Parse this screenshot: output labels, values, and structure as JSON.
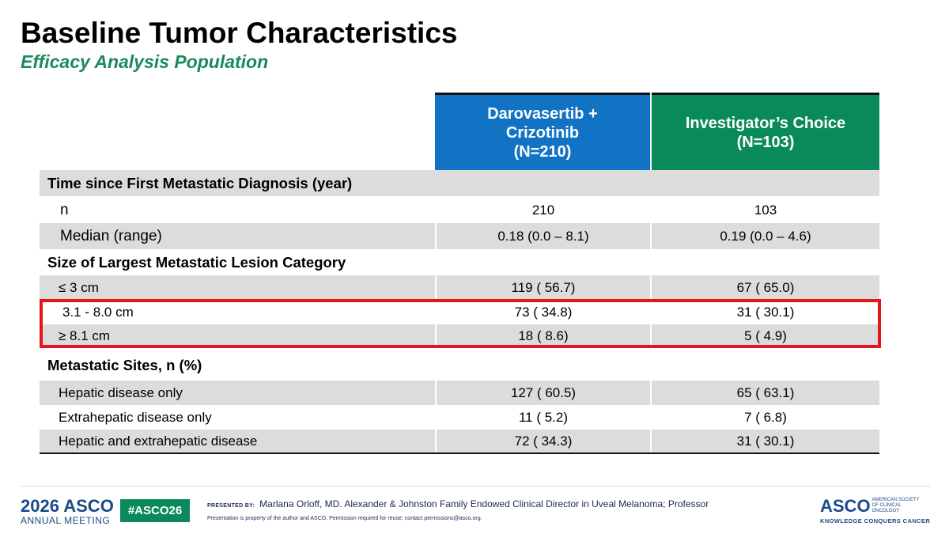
{
  "title": "Baseline Tumor Characteristics",
  "subtitle": "Efficacy Analysis Population",
  "columns": [
    {
      "label": "Darovasertib +\nCrizotinib\n(N=210)",
      "color": "#1273c4"
    },
    {
      "label": "Investigator’s Choice\n(N=103)",
      "color": "#0a8a5b"
    }
  ],
  "sections": {
    "s1": "Time since First Metastatic Diagnosis (year)",
    "s2": "Size of Largest Metastatic Lesion Category",
    "s3": "Metastatic Sites, n (%)"
  },
  "rows": {
    "n": {
      "label": "n",
      "a": "210",
      "b": "103"
    },
    "median": {
      "label": "Median (range)",
      "a": "0.18  (0.0 – 8.1)",
      "b": "0.19 (0.0 – 4.6)"
    },
    "le3": {
      "label": "≤ 3 cm",
      "a": "119 ( 56.7)",
      "b": "67 ( 65.0)"
    },
    "mid": {
      "label": "3.1 - 8.0 cm",
      "a": "73 ( 34.8)",
      "b": "31 ( 30.1)"
    },
    "ge8": {
      "label": "≥ 8.1 cm",
      "a": "18 (  8.6)",
      "b": "5 (  4.9)"
    },
    "hep": {
      "label": "Hepatic disease only",
      "a": "127 ( 60.5)",
      "b": "65 ( 63.1)"
    },
    "extra": {
      "label": "Extrahepatic disease only",
      "a": "11 (  5.2)",
      "b": "7 (  6.8)"
    },
    "both": {
      "label": "Hepatic and extrahepatic disease",
      "a": "72 ( 34.3)",
      "b": "31 ( 30.1)"
    }
  },
  "highlight_color": "#e8141b",
  "footer": {
    "meeting_year": "2026",
    "meeting_logo": "ASCO",
    "meeting_sub": "ANNUAL MEETING",
    "hashtag": "#ASCO26",
    "presented_label": "PRESENTED BY:",
    "presenter": "Marlana Orloff, MD. Alexander & Johnston Family Endowed Clinical Director in Uveal Melanoma; Professor",
    "note": "Presentation is property of the author and ASCO. Permission required for reuse; contact permissions@asco.org.",
    "org_logo": "ASCO",
    "org_name": "AMERICAN SOCIETY OF CLINICAL ONCOLOGY",
    "org_tagline": "KNOWLEDGE CONQUERS CANCER"
  }
}
